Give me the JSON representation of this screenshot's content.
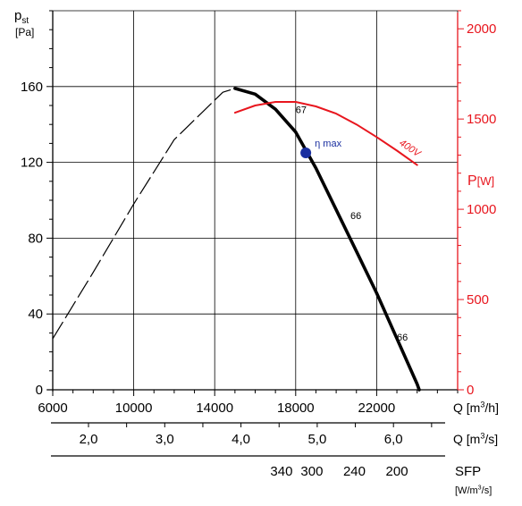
{
  "chart_data": {
    "type": "line",
    "title": "",
    "x_axis": {
      "label": "Q [m³/h]",
      "label_base": "Q [m",
      "label_sup": "3",
      "label_end": "/h]",
      "min": 6000,
      "max": 26000,
      "ticks": [
        6000,
        10000,
        14000,
        18000,
        22000
      ],
      "minor_step": 1000
    },
    "y_axis_left": {
      "label_main": "p",
      "label_sub": "st",
      "label_unit": "[Pa]",
      "min": 0,
      "max": 200,
      "ticks": [
        0,
        40,
        80,
        120,
        160
      ],
      "minor_step": 10
    },
    "y_axis_right": {
      "label": "P[W]",
      "label_main": "P",
      "label_unit": "[W]",
      "color": "#e8161e",
      "min": 0,
      "max": 2100,
      "ticks": [
        0,
        500,
        1000,
        1500,
        2000
      ],
      "minor_step": 100
    },
    "secondary_axes": [
      {
        "label": "Q [m³/s]",
        "label_base": "Q [m",
        "label_sup": "3",
        "label_end": "/s]",
        "ticks": [
          {
            "value": 2.0,
            "label": "2,0"
          },
          {
            "value": 3.0,
            "label": "3,0"
          },
          {
            "value": 4.0,
            "label": "4,0"
          },
          {
            "value": 5.0,
            "label": "5,0"
          },
          {
            "value": 6.0,
            "label": "6,0"
          }
        ]
      },
      {
        "label": "SFP [W/m³/s]",
        "label_top": "SFP",
        "label_bottom_base": "[W/m",
        "label_bottom_sup": "3",
        "label_bottom_end": "/s]",
        "ticks": [
          {
            "q": 17300,
            "label": "340"
          },
          {
            "q": 18800,
            "label": "300"
          },
          {
            "q": 20900,
            "label": "240"
          },
          {
            "q": 23000,
            "label": "200"
          }
        ]
      }
    ],
    "series": [
      {
        "style": "dashed",
        "color": "#000000",
        "axis": "left",
        "points": [
          [
            6000,
            27
          ],
          [
            8000,
            62
          ],
          [
            10000,
            98
          ],
          [
            12000,
            132
          ],
          [
            14400,
            157
          ],
          [
            15000,
            159
          ]
        ]
      },
      {
        "style": "solid-thick",
        "color": "#000000",
        "axis": "left",
        "points": [
          [
            15000,
            159
          ],
          [
            16000,
            156
          ],
          [
            17000,
            148
          ],
          [
            18000,
            136
          ],
          [
            19000,
            117
          ],
          [
            20000,
            95
          ],
          [
            21000,
            73
          ],
          [
            22000,
            51
          ],
          [
            23000,
            27
          ],
          [
            24000,
            3
          ],
          [
            24100,
            0
          ]
        ]
      },
      {
        "name": "400V",
        "style": "solid",
        "color": "#e8161e",
        "axis": "right",
        "points": [
          [
            15000,
            1535
          ],
          [
            16000,
            1575
          ],
          [
            17000,
            1595
          ],
          [
            18000,
            1595
          ],
          [
            19000,
            1570
          ],
          [
            20000,
            1530
          ],
          [
            21000,
            1470
          ],
          [
            22000,
            1400
          ],
          [
            23000,
            1325
          ],
          [
            24000,
            1245
          ]
        ]
      }
    ],
    "annotations": [
      {
        "text": "67",
        "q": 18000,
        "pa": 146
      },
      {
        "text": "66",
        "q": 20700,
        "pa": 90
      },
      {
        "text": "66",
        "q": 23000,
        "pa": 26
      },
      {
        "text": "η max",
        "q": 18500,
        "pa": 125,
        "color": "#1a2fa0",
        "marker": true
      },
      {
        "text": "400V",
        "q": 23350,
        "series": "400V",
        "color": "#e8161e"
      }
    ]
  }
}
